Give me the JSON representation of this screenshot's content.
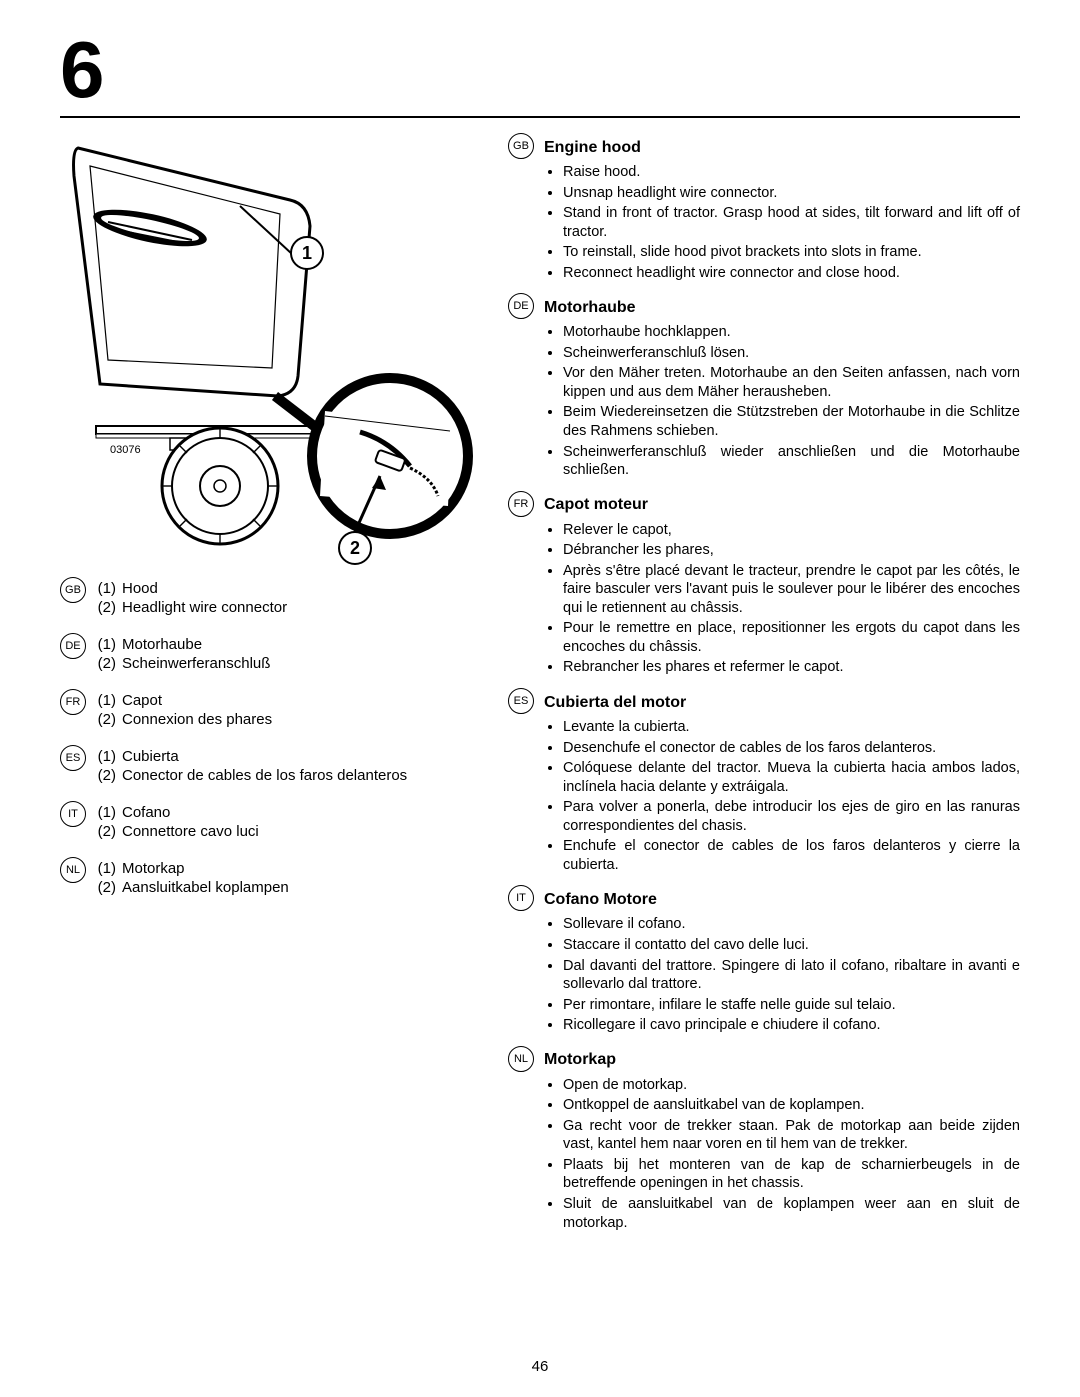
{
  "chapter_number": "6",
  "page_number": "46",
  "figure": {
    "callouts": [
      "1",
      "2"
    ],
    "part_code": "03076"
  },
  "legend": [
    {
      "lang": "GB",
      "items": [
        [
          "(1)",
          "Hood"
        ],
        [
          "(2)",
          "Headlight  wire connector"
        ]
      ]
    },
    {
      "lang": "DE",
      "items": [
        [
          "(1)",
          "Motorhaube"
        ],
        [
          "(2)",
          "Scheinwerferanschluß"
        ]
      ]
    },
    {
      "lang": "FR",
      "items": [
        [
          "(1)",
          "Capot"
        ],
        [
          "(2)",
          "Connexion des phares"
        ]
      ]
    },
    {
      "lang": "ES",
      "items": [
        [
          "(1)",
          "Cubierta"
        ],
        [
          "(2)",
          "Conector de cables de los faros delanteros"
        ]
      ]
    },
    {
      "lang": "IT",
      "items": [
        [
          "(1)",
          "Cofano"
        ],
        [
          "(2)",
          "Connettore cavo luci"
        ]
      ]
    },
    {
      "lang": "NL",
      "items": [
        [
          "(1)",
          "Motorkap"
        ],
        [
          "(2)",
          "Aansluitkabel koplampen"
        ]
      ]
    }
  ],
  "sections": [
    {
      "lang": "GB",
      "title": "Engine hood",
      "bullets": [
        "Raise hood.",
        "Unsnap headlight wire connector.",
        "Stand in front of tractor.  Grasp hood at sides, tilt forward and lift off of tractor.",
        "To reinstall, slide hood pivot brackets into slots in frame.",
        "Reconnect headlight wire connector and close hood."
      ]
    },
    {
      "lang": "DE",
      "title": "Motorhaube",
      "bullets": [
        "Motorhaube hochklappen.",
        "Scheinwerferanschluß lösen.",
        "Vor den Mäher treten. Motorhaube an den Seiten anfassen, nach vorn kippen und aus dem Mäher herausheben.",
        "Beim Wiedereinsetzen die Stützstreben der Motorhaube in die Schlitze des Rahmens schieben.",
        "Scheinwerferanschluß wieder anschließen und die Motorhaube schließen."
      ]
    },
    {
      "lang": "FR",
      "title": "Capot moteur",
      "bullets": [
        "Relever le capot,",
        "Débrancher les phares,",
        "Après s'être placé devant le tracteur, prendre le capot par les côtés, le faire basculer vers l'avant puis le soulever pour le libérer des encoches qui le retiennent au châssis.",
        "Pour le remettre en place, repositionner les ergots du capot dans les encoches du châssis.",
        "Rebrancher les phares et refermer le capot."
      ]
    },
    {
      "lang": "ES",
      "title": "Cubierta del motor",
      "bullets": [
        "Levante la cubierta.",
        "Desenchufe el conector de cables de los faros delanteros.",
        "Colóquese delante del tractor. Mueva la cubierta hacia ambos lados, inclínela hacia delante y extráigala.",
        "Para volver a ponerla, debe introducir los ejes de giro en las ranuras correspondientes del chasis.",
        "Enchufe el conector de cables de los faros delanteros y cierre la cubierta."
      ]
    },
    {
      "lang": "IT",
      "title": "Cofano Motore",
      "bullets": [
        "Sollevare il cofano.",
        "Staccare il contatto del cavo delle luci.",
        "Dal davanti del trattore. Spingere di lato il cofano, ribaltare in avanti e sollevarlo dal trattore.",
        "Per rimontare, infilare le staffe nelle guide sul telaio.",
        "Ricollegare il cavo principale e chiudere il cofano."
      ]
    },
    {
      "lang": "NL",
      "title": "Motorkap",
      "bullets": [
        "Open de motorkap.",
        "Ontkoppel de aansluitkabel van de koplampen.",
        "Ga recht voor de trekker staan. Pak de motorkap aan beide zijden vast, kantel hem naar voren en til hem van de trekker.",
        "Plaats bij het monteren van de kap de scharnierbeugels in de betreffende openingen in het chassis.",
        "Sluit de aansluitkabel van de koplampen weer aan en sluit de motorkap."
      ]
    }
  ],
  "colors": {
    "text": "#000000",
    "bg": "#ffffff"
  }
}
